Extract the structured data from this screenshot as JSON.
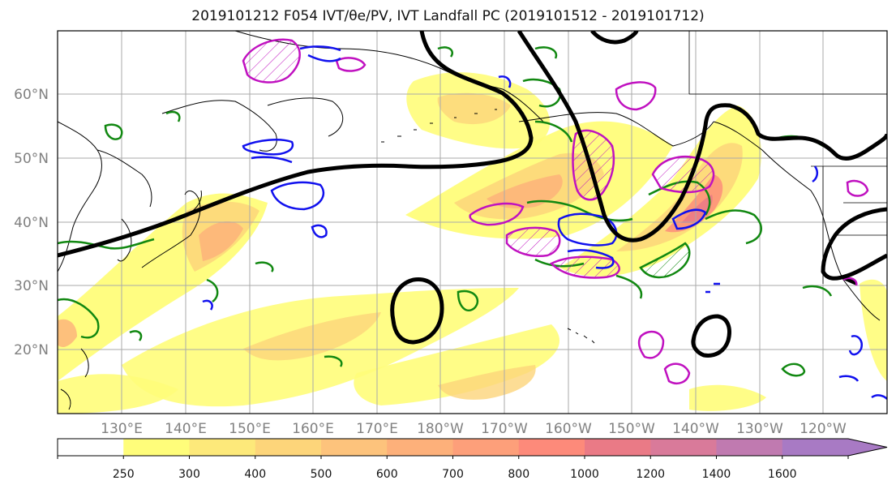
{
  "title": "2019101212 F054 IVT/θe/PV, IVT Landfall PC (2019101512 - 2019101712)",
  "lat_labels": [
    "60°N",
    "50°N",
    "40°N",
    "30°N",
    "20°N"
  ],
  "lon_labels": [
    "130°E",
    "140°E",
    "150°E",
    "160°E",
    "170°E",
    "180°W",
    "170°W",
    "160°W",
    "150°W",
    "140°W",
    "130°W",
    "120°W"
  ],
  "colorbar": {
    "tick_labels": [
      "250",
      "300",
      "400",
      "500",
      "600",
      "700",
      "800",
      "1000",
      "1200",
      "1400",
      "1600"
    ],
    "colors": [
      "#ffffff",
      "#fffd7a",
      "#fde97a",
      "#fdd57a",
      "#fdc37c",
      "#fdb07a",
      "#fd9f7a",
      "#fd8a7a",
      "#ea7a86",
      "#d97a9a",
      "#c07ab0",
      "#a87ac4"
    ]
  },
  "colors": {
    "ivt_contour": "#000000",
    "theta_e": "#118811",
    "pv_positive": "#c011c0",
    "pv_negative": "#1111ee",
    "coast": "#000000",
    "grid": "#aaaaaa"
  }
}
